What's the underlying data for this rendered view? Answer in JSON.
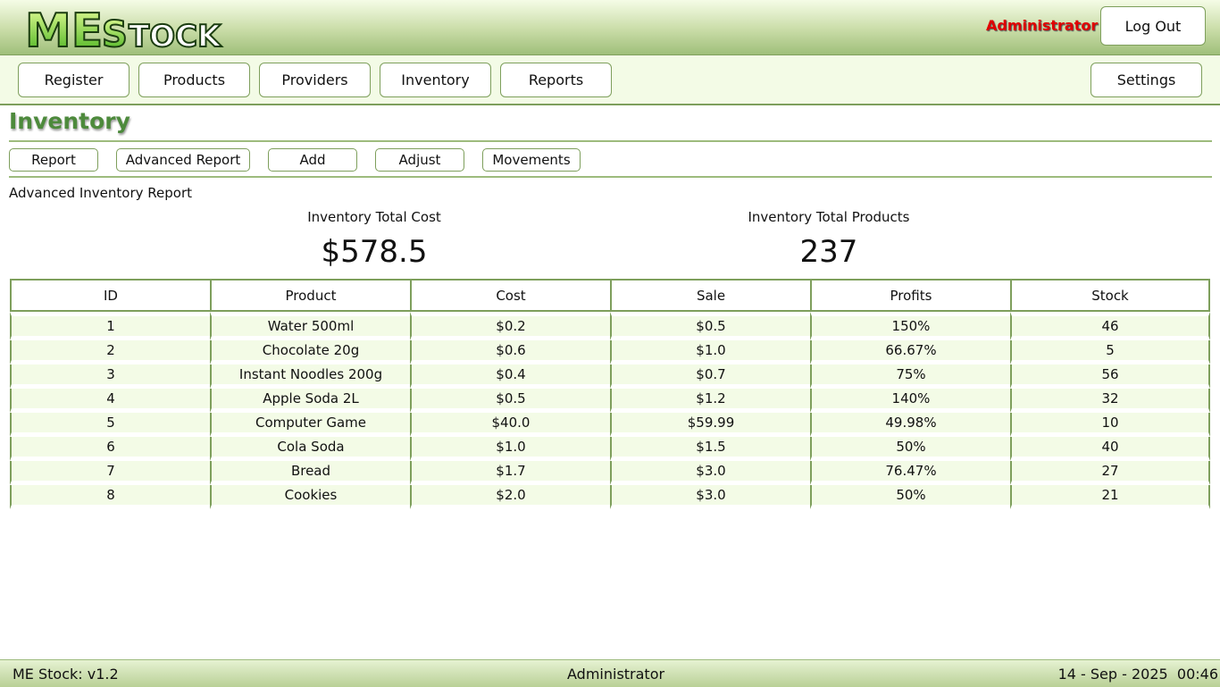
{
  "app": {
    "logo_text": "MEStock",
    "user_role": "Administrator",
    "logout_label": "Log Out"
  },
  "nav": {
    "register": "Register",
    "products": "Products",
    "providers": "Providers",
    "inventory": "Inventory",
    "reports": "Reports",
    "settings": "Settings"
  },
  "page": {
    "title": "Inventory",
    "subnav": {
      "report": "Report",
      "advanced_report": "Advanced Report",
      "add": "Add",
      "adjust": "Adjust",
      "movements": "Movements"
    },
    "report_title": "Advanced Inventory Report",
    "stats": {
      "total_cost_label": "Inventory Total Cost",
      "total_cost_value": "$578.5",
      "total_products_label": "Inventory Total Products",
      "total_products_value": "237"
    }
  },
  "table": {
    "headers": [
      "ID",
      "Product",
      "Cost",
      "Sale",
      "Profits",
      "Stock"
    ],
    "rows": [
      [
        "1",
        "Water 500ml",
        "$0.2",
        "$0.5",
        "150%",
        "46"
      ],
      [
        "2",
        "Chocolate 20g",
        "$0.6",
        "$1.0",
        "66.67%",
        "5"
      ],
      [
        "3",
        "Instant Noodles 200g",
        "$0.4",
        "$0.7",
        "75%",
        "56"
      ],
      [
        "4",
        "Apple Soda 2L",
        "$0.5",
        "$1.2",
        "140%",
        "32"
      ],
      [
        "5",
        "Computer Game",
        "$40.0",
        "$59.99",
        "49.98%",
        "10"
      ],
      [
        "6",
        "Cola Soda",
        "$1.0",
        "$1.5",
        "50%",
        "40"
      ],
      [
        "7",
        "Bread",
        "$1.7",
        "$3.0",
        "76.47%",
        "27"
      ],
      [
        "8",
        "Cookies",
        "$2.0",
        "$3.0",
        "50%",
        "21"
      ]
    ]
  },
  "footer": {
    "version": "ME Stock: v1.2",
    "user": "Administrator",
    "datetime": "14 - Sep - 2025  00:46"
  },
  "colors": {
    "accent": "#7e9f5c",
    "title_green": "#4d8a3c",
    "row_bg": "#f3fbe6",
    "user_red": "#e00000"
  }
}
